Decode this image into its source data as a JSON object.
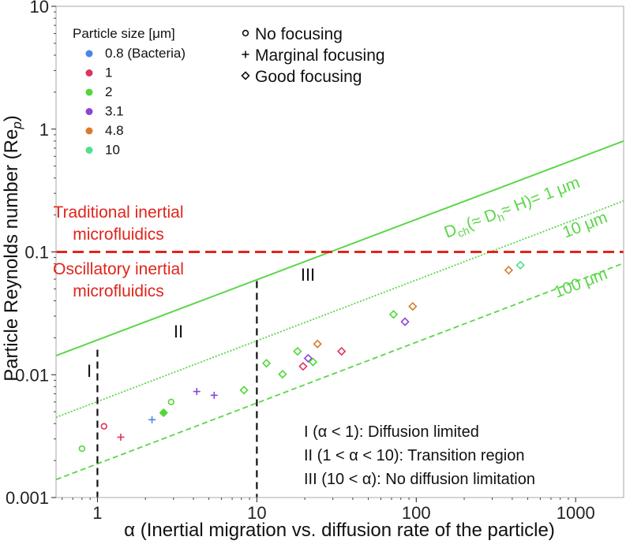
{
  "chart_data": {
    "type": "scatter",
    "xlabel": "α (Inertial migration vs. diffusion rate of the particle)",
    "ylabel": "Particle Reynolds number (Re",
    "ylabel_sub": "p",
    "ylabel_tail": ")",
    "xscale": "log",
    "yscale": "log",
    "xlim": [
      0.55,
      2000
    ],
    "ylim": [
      0.001,
      10
    ],
    "x_ticks": [
      1,
      10,
      100,
      1000
    ],
    "x_tick_labels": [
      "1",
      "10",
      "100",
      "1000"
    ],
    "y_ticks": [
      0.001,
      0.01,
      0.1,
      1,
      10
    ],
    "y_tick_labels": [
      "0.001",
      "0.01",
      "0.1",
      "1",
      "10"
    ],
    "grid": false,
    "size_legend": {
      "title": "Particle size [μm]",
      "entries": [
        {
          "label": "0.8 (Bacteria)",
          "color": "#4a86e8"
        },
        {
          "label": "1",
          "color": "#e0345a"
        },
        {
          "label": "2",
          "color": "#52d63a"
        },
        {
          "label": "3.1",
          "color": "#8e44d6"
        },
        {
          "label": "4.8",
          "color": "#d97b2b"
        },
        {
          "label": "10",
          "color": "#4fe08f"
        }
      ]
    },
    "marker_legend": [
      {
        "label": "No focusing",
        "marker": "circle"
      },
      {
        "label": "Marginal focusing",
        "marker": "plus"
      },
      {
        "label": "Good focusing",
        "marker": "diamond"
      }
    ],
    "threshold": {
      "y": 0.1,
      "color": "#e0251b",
      "label_above": [
        "Traditional inertial",
        "microfluidics"
      ],
      "label_below": [
        "Oscillatory inertial",
        "microfluidics"
      ]
    },
    "region_boundaries": [
      1,
      10
    ],
    "regions": [
      "I",
      "II",
      "III"
    ],
    "region_descriptions": [
      "I (α < 1): Diffusion limited",
      "II (1 < α < 10): Transition region",
      "III (10 < α): No diffusion limitation"
    ],
    "scaling_lines": {
      "color": "#5cd64a",
      "label_main_prefix": "D",
      "label_main_sub1": "ch",
      "label_main_mid": "(≈ D",
      "label_main_sub2": "h",
      "label_main_tail": "≈ H)= 1 μm",
      "lines": [
        {
          "name": "1 μm",
          "style": "solid",
          "x": [
            0.55,
            2000
          ],
          "y": [
            0.0143,
            0.8
          ]
        },
        {
          "name": "10 μm",
          "label": "10 μm",
          "style": "dotted",
          "x": [
            0.55,
            2000
          ],
          "y": [
            0.0045,
            0.26
          ]
        },
        {
          "name": "100 μm",
          "label": "100 μm",
          "style": "dashed",
          "x": [
            0.55,
            2000
          ],
          "y": [
            0.0014,
            0.081
          ]
        }
      ]
    },
    "points": [
      {
        "x": 0.8,
        "y": 0.0025,
        "size": "2",
        "marker": "circle"
      },
      {
        "x": 1.1,
        "y": 0.0038,
        "size": "1",
        "marker": "circle"
      },
      {
        "x": 1.4,
        "y": 0.0031,
        "size": "1",
        "marker": "plus"
      },
      {
        "x": 2.2,
        "y": 0.0043,
        "size": "0.8 (Bacteria)",
        "marker": "plus"
      },
      {
        "x": 2.9,
        "y": 0.006,
        "size": "2",
        "marker": "circle"
      },
      {
        "x": 2.6,
        "y": 0.0049,
        "size": "2",
        "marker": "diamond"
      },
      {
        "x": 4.2,
        "y": 0.0073,
        "size": "3.1",
        "marker": "plus"
      },
      {
        "x": 5.4,
        "y": 0.0068,
        "size": "3.1",
        "marker": "plus"
      },
      {
        "x": 8.3,
        "y": 0.0075,
        "size": "2",
        "marker": "diamond"
      },
      {
        "x": 11.5,
        "y": 0.0124,
        "size": "2",
        "marker": "diamond"
      },
      {
        "x": 14.5,
        "y": 0.0101,
        "size": "2",
        "marker": "diamond"
      },
      {
        "x": 18.0,
        "y": 0.0155,
        "size": "2",
        "marker": "diamond"
      },
      {
        "x": 19.5,
        "y": 0.0117,
        "size": "1",
        "marker": "diamond"
      },
      {
        "x": 21.0,
        "y": 0.0136,
        "size": "3.1",
        "marker": "diamond"
      },
      {
        "x": 22.5,
        "y": 0.0127,
        "size": "2",
        "marker": "diamond"
      },
      {
        "x": 24.0,
        "y": 0.0178,
        "size": "4.8",
        "marker": "diamond"
      },
      {
        "x": 34.0,
        "y": 0.0155,
        "size": "1",
        "marker": "diamond"
      },
      {
        "x": 72.0,
        "y": 0.031,
        "size": "2",
        "marker": "diamond"
      },
      {
        "x": 85.0,
        "y": 0.027,
        "size": "3.1",
        "marker": "diamond"
      },
      {
        "x": 95.0,
        "y": 0.036,
        "size": "4.8",
        "marker": "diamond"
      },
      {
        "x": 380.0,
        "y": 0.071,
        "size": "4.8",
        "marker": "diamond"
      },
      {
        "x": 450.0,
        "y": 0.078,
        "size": "10",
        "marker": "diamond"
      }
    ]
  }
}
